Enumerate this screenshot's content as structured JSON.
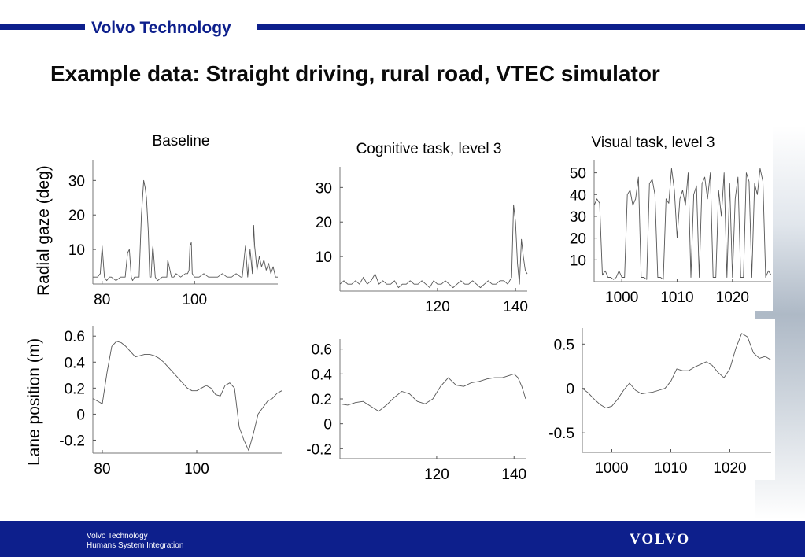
{
  "header": {
    "company": "Volvo Technology",
    "title": "Example data: Straight driving, rural road, VTEC simulator",
    "accent_color": "#0d1f8c"
  },
  "footer": {
    "line1": "Volvo Technology",
    "line2": "Humans System Integration",
    "logo_text": "VOLVO"
  },
  "y_labels": {
    "top_row": "Radial gaze (deg)",
    "bottom_row": "Lane position (m)"
  },
  "chart_data": [
    {
      "id": "gaze-baseline",
      "type": "line",
      "title": "Baseline",
      "xlim": [
        78,
        118
      ],
      "ylim": [
        0,
        36
      ],
      "x_ticks": [
        80,
        100
      ],
      "y_ticks": [
        10,
        20,
        30
      ],
      "x": [
        78,
        79,
        79.6,
        80,
        80.5,
        81,
        81.6,
        82,
        83,
        84,
        85,
        85.5,
        85.9,
        86.3,
        86.6,
        87,
        88,
        88.5,
        89,
        89.3,
        89.6,
        90,
        90.3,
        90.6,
        90.9,
        91,
        91.5,
        92,
        93,
        94,
        94.2,
        95,
        95.5,
        96,
        97,
        98,
        98.5,
        98.8,
        99,
        99.3,
        99.5,
        100,
        101,
        102,
        103,
        104,
        105,
        106,
        107,
        108,
        109,
        110,
        110.3,
        111,
        111.5,
        112,
        112.5,
        112.8,
        113,
        113.5,
        114,
        114.5,
        115,
        115.5,
        116,
        116.5,
        117,
        117.5,
        118
      ],
      "y": [
        2,
        2,
        3,
        11,
        2,
        1,
        2,
        2,
        1,
        2,
        2,
        9,
        10,
        2,
        1,
        2,
        2,
        20,
        30,
        28,
        25,
        15,
        2,
        2,
        10,
        11,
        2,
        1,
        2,
        2,
        7,
        2,
        2,
        3,
        2,
        3,
        3,
        4,
        11,
        12,
        3,
        2,
        2,
        3,
        2,
        2,
        2,
        3,
        2,
        2,
        3,
        2,
        2,
        11,
        2,
        10,
        3,
        17,
        11,
        4,
        8,
        5,
        7,
        4,
        6,
        3,
        5,
        2,
        2
      ]
    },
    {
      "id": "gaze-cognitive",
      "type": "line",
      "title": "Cognitive task, level 3",
      "xlim": [
        95,
        143
      ],
      "ylim": [
        0,
        36
      ],
      "x_ticks": [
        120,
        140
      ],
      "y_ticks": [
        10,
        20,
        30
      ],
      "x": [
        95,
        96,
        97,
        98,
        99,
        100,
        101,
        102,
        103,
        104,
        105,
        106,
        107,
        108,
        109,
        110,
        111,
        112,
        113,
        114,
        115,
        116,
        117,
        118,
        119,
        120,
        121,
        122,
        123,
        124,
        125,
        126,
        127,
        128,
        129,
        130,
        131,
        132,
        133,
        134,
        135,
        136,
        137,
        138,
        139,
        139.5,
        140,
        140.5,
        141,
        141.5,
        142,
        142.5,
        143
      ],
      "y": [
        2,
        3,
        2,
        2,
        3,
        2,
        4,
        2,
        3,
        5,
        2,
        3,
        2,
        2,
        3,
        1,
        2,
        2,
        3,
        2,
        2,
        3,
        2,
        1,
        3,
        2,
        2,
        3,
        2,
        1,
        2,
        3,
        2,
        2,
        3,
        2,
        1,
        2,
        3,
        2,
        2,
        3,
        3,
        2,
        4,
        25,
        20,
        8,
        2,
        15,
        10,
        6,
        5
      ]
    },
    {
      "id": "gaze-visual",
      "type": "line",
      "title": "Visual task, level 3",
      "xlim": [
        995,
        1027
      ],
      "ylim": [
        0,
        56
      ],
      "x_ticks": [
        1000,
        1010,
        1020
      ],
      "y_ticks": [
        10,
        20,
        30,
        40,
        50
      ],
      "x": [
        995,
        995.5,
        996,
        996.5,
        997,
        997.5,
        998,
        998.5,
        999,
        999.5,
        1000,
        1000.5,
        1001,
        1001.5,
        1002,
        1002.5,
        1003,
        1003.5,
        1004,
        1004.5,
        1005,
        1005.5,
        1006,
        1006.5,
        1007,
        1007.5,
        1008,
        1008.5,
        1009,
        1009.5,
        1010,
        1010.5,
        1011,
        1011.5,
        1012,
        1012.5,
        1013,
        1013.5,
        1014,
        1014.5,
        1015,
        1015.5,
        1016,
        1016.5,
        1017,
        1017.5,
        1018,
        1018.5,
        1019,
        1019.5,
        1020,
        1020.5,
        1021,
        1021.5,
        1022,
        1022.5,
        1023,
        1023.5,
        1024,
        1024.5,
        1025,
        1025.5,
        1026,
        1026.5,
        1027
      ],
      "y": [
        35,
        38,
        36,
        3,
        5,
        2,
        2,
        1,
        2,
        5,
        2,
        2,
        40,
        42,
        35,
        38,
        48,
        2,
        2,
        1,
        45,
        47,
        40,
        2,
        2,
        1,
        38,
        36,
        52,
        42,
        20,
        38,
        42,
        35,
        50,
        2,
        40,
        44,
        2,
        45,
        48,
        38,
        50,
        2,
        2,
        42,
        30,
        50,
        2,
        45,
        2,
        38,
        48,
        2,
        2,
        50,
        46,
        2,
        45,
        40,
        52,
        46,
        2,
        5,
        3
      ]
    },
    {
      "id": "lane-baseline",
      "type": "line",
      "title": "",
      "xlim": [
        78,
        118
      ],
      "ylim": [
        -0.3,
        0.68
      ],
      "x_ticks": [
        80,
        100
      ],
      "y_ticks": [
        -0.2,
        0,
        0.2,
        0.4,
        0.6
      ],
      "x": [
        78,
        79,
        80,
        81,
        82,
        83,
        84,
        85,
        86,
        87,
        88,
        89,
        90,
        91,
        92,
        93,
        94,
        95,
        96,
        97,
        98,
        99,
        100,
        101,
        102,
        103,
        104,
        105,
        106,
        107,
        108,
        109,
        110,
        111,
        112,
        113,
        114,
        115,
        116,
        117,
        118
      ],
      "y": [
        0.12,
        0.1,
        0.08,
        0.32,
        0.52,
        0.56,
        0.55,
        0.52,
        0.48,
        0.44,
        0.45,
        0.46,
        0.46,
        0.45,
        0.43,
        0.4,
        0.36,
        0.32,
        0.28,
        0.24,
        0.2,
        0.18,
        0.18,
        0.2,
        0.22,
        0.2,
        0.15,
        0.14,
        0.22,
        0.24,
        0.2,
        -0.1,
        -0.2,
        -0.28,
        -0.15,
        0,
        0.05,
        0.1,
        0.12,
        0.16,
        0.18
      ]
    },
    {
      "id": "lane-cognitive",
      "type": "line",
      "title": "",
      "xlim": [
        95,
        143
      ],
      "ylim": [
        -0.28,
        0.68
      ],
      "x_ticks": [
        120,
        140
      ],
      "y_ticks": [
        -0.2,
        0,
        0.2,
        0.4,
        0.6
      ],
      "x": [
        95,
        97,
        99,
        101,
        103,
        105,
        107,
        109,
        111,
        113,
        115,
        117,
        119,
        121,
        123,
        125,
        127,
        129,
        131,
        133,
        135,
        137,
        139,
        140,
        141,
        142,
        143
      ],
      "y": [
        0.16,
        0.15,
        0.17,
        0.18,
        0.14,
        0.1,
        0.15,
        0.21,
        0.26,
        0.24,
        0.18,
        0.16,
        0.2,
        0.3,
        0.37,
        0.31,
        0.3,
        0.33,
        0.34,
        0.36,
        0.37,
        0.37,
        0.39,
        0.4,
        0.37,
        0.3,
        0.2
      ]
    },
    {
      "id": "lane-visual",
      "type": "line",
      "title": "",
      "xlim": [
        995,
        1027
      ],
      "ylim": [
        -0.72,
        0.68
      ],
      "x_ticks": [
        1000,
        1010,
        1020
      ],
      "y_ticks": [
        -0.5,
        0,
        0.5
      ],
      "x": [
        995,
        996,
        997,
        998,
        999,
        1000,
        1001,
        1002,
        1003,
        1004,
        1005,
        1006,
        1007,
        1008,
        1009,
        1010,
        1011,
        1012,
        1013,
        1014,
        1015,
        1016,
        1017,
        1018,
        1019,
        1020,
        1021,
        1022,
        1023,
        1024,
        1025,
        1026,
        1027
      ],
      "y": [
        0,
        -0.05,
        -0.12,
        -0.18,
        -0.22,
        -0.2,
        -0.12,
        -0.02,
        0.06,
        -0.02,
        -0.06,
        -0.05,
        -0.04,
        -0.02,
        0,
        0.08,
        0.22,
        0.2,
        0.2,
        0.24,
        0.27,
        0.3,
        0.26,
        0.18,
        0.12,
        0.22,
        0.45,
        0.62,
        0.58,
        0.4,
        0.34,
        0.36,
        0.32
      ]
    }
  ]
}
